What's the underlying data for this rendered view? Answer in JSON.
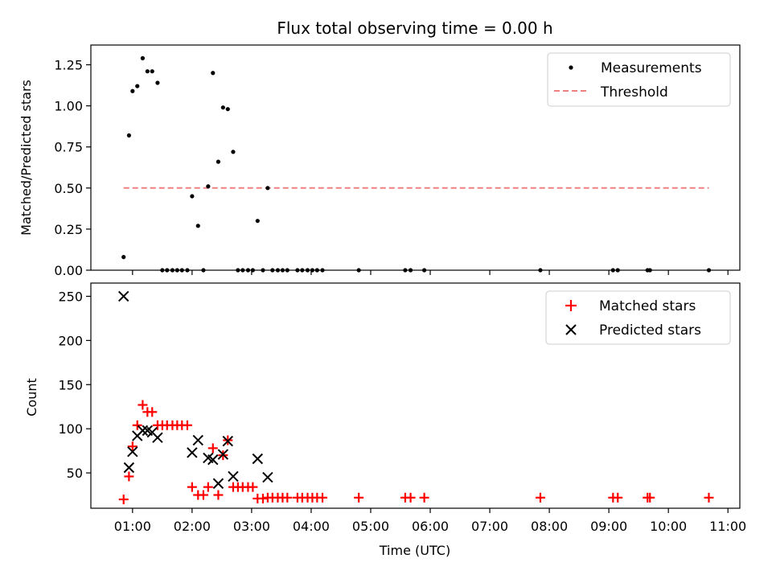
{
  "figure": {
    "title": "Flux total observing time = 0.00 h",
    "xlabel": "Time (UTC)"
  },
  "chart_data": [
    {
      "type": "scatter",
      "panel": "top",
      "ylabel": "Matched/Predicted stars",
      "xlim": [
        0.3,
        11.2
      ],
      "ylim": [
        0.0,
        1.37
      ],
      "xunit": "hours UTC",
      "yticks": [
        0.0,
        0.25,
        0.5,
        0.75,
        1.0,
        1.25
      ],
      "ytick_labels": [
        "0.00",
        "0.25",
        "0.50",
        "0.75",
        "1.00",
        "1.25"
      ],
      "grid": false,
      "legend_position": "top-right",
      "series": [
        {
          "name": "Measurements",
          "kind": "points",
          "color": "#000000",
          "x": [
            0.85,
            0.94,
            1.0,
            1.08,
            1.17,
            1.25,
            1.33,
            1.42,
            1.5,
            1.58,
            1.67,
            1.75,
            1.83,
            1.92,
            2.0,
            2.1,
            2.19,
            2.27,
            2.35,
            2.44,
            2.52,
            2.6,
            2.69,
            2.77,
            2.85,
            2.94,
            3.02,
            3.1,
            3.19,
            3.27,
            3.35,
            3.44,
            3.52,
            3.6,
            3.77,
            3.85,
            3.94,
            4.02,
            4.1,
            4.19,
            4.8,
            5.58,
            5.67,
            5.9,
            7.85,
            9.07,
            9.15,
            9.65,
            9.69,
            10.68
          ],
          "y": [
            0.08,
            0.82,
            1.09,
            1.12,
            1.29,
            1.21,
            1.21,
            1.14,
            0.0,
            0.0,
            0.0,
            0.0,
            0.0,
            0.0,
            0.45,
            0.27,
            0.0,
            0.51,
            1.2,
            0.66,
            0.99,
            0.98,
            0.72,
            0.0,
            0.0,
            0.0,
            0.0,
            0.3,
            0.0,
            0.5,
            0.0,
            0.0,
            0.0,
            0.0,
            0.0,
            0.0,
            0.0,
            0.0,
            0.0,
            0.0,
            0.0,
            0.0,
            0.0,
            0.0,
            0.0,
            0.0,
            0.0,
            0.0,
            0.0,
            0.0
          ]
        },
        {
          "name": "Threshold",
          "kind": "dashed-line",
          "color": "#f08080",
          "x": [
            0.85,
            10.68
          ],
          "y": [
            0.5,
            0.5
          ]
        }
      ]
    },
    {
      "type": "scatter",
      "panel": "bottom",
      "ylabel": "Count",
      "xlim": [
        0.3,
        11.2
      ],
      "ylim": [
        10,
        265
      ],
      "xunit": "hours UTC",
      "yticks": [
        50,
        100,
        150,
        200,
        250
      ],
      "ytick_labels": [
        "50",
        "100",
        "150",
        "200",
        "250"
      ],
      "xticks": [
        1,
        2,
        3,
        4,
        5,
        6,
        7,
        8,
        9,
        10,
        11
      ],
      "xtick_labels": [
        "01:00",
        "02:00",
        "03:00",
        "04:00",
        "05:00",
        "06:00",
        "07:00",
        "08:00",
        "09:00",
        "10:00",
        "11:00"
      ],
      "grid": false,
      "legend_position": "top-right",
      "series": [
        {
          "name": "Matched stars",
          "kind": "plus",
          "color": "#ff0000",
          "x": [
            0.85,
            0.94,
            1.0,
            1.08,
            1.17,
            1.25,
            1.33,
            1.42,
            1.5,
            1.58,
            1.67,
            1.75,
            1.83,
            1.92,
            2.0,
            2.1,
            2.19,
            2.27,
            2.35,
            2.44,
            2.52,
            2.6,
            2.69,
            2.77,
            2.85,
            2.94,
            3.02,
            3.1,
            3.19,
            3.27,
            3.35,
            3.44,
            3.52,
            3.6,
            3.77,
            3.85,
            3.94,
            4.02,
            4.1,
            4.19,
            4.8,
            5.58,
            5.67,
            5.9,
            7.85,
            9.07,
            9.15,
            9.65,
            9.69,
            10.68
          ],
          "y": [
            20,
            46,
            80,
            104,
            127,
            119,
            119,
            104,
            104,
            104,
            104,
            104,
            104,
            104,
            34,
            25,
            25,
            34,
            78,
            25,
            70,
            87,
            34,
            34,
            34,
            34,
            34,
            21,
            21,
            22,
            22,
            22,
            22,
            22,
            22,
            22,
            22,
            22,
            22,
            22,
            22,
            22,
            22,
            22,
            22,
            22,
            22,
            22,
            22,
            22
          ]
        },
        {
          "name": "Predicted stars",
          "kind": "cross",
          "color": "#000000",
          "x": [
            0.85,
            0.94,
            1.0,
            1.08,
            1.17,
            1.25,
            1.33,
            1.42,
            2.0,
            2.1,
            2.27,
            2.35,
            2.44,
            2.52,
            2.6,
            2.69,
            3.1,
            3.27
          ],
          "y": [
            250,
            56,
            74,
            92,
            98,
            98,
            96,
            90,
            73,
            87,
            67,
            65,
            38,
            71,
            86,
            46,
            66,
            45
          ]
        }
      ]
    }
  ]
}
